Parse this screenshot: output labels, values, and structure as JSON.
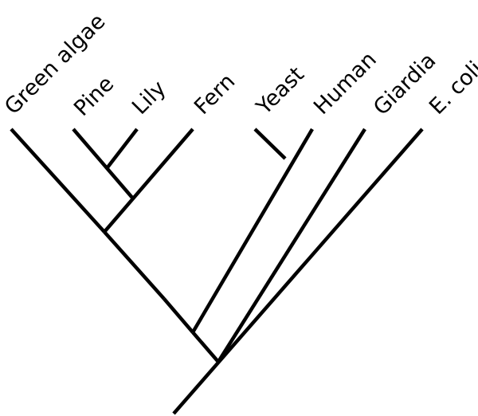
{
  "diagram": {
    "type": "phylogenetic-tree",
    "line_color": "#000000",
    "background_color": "#ffffff",
    "taxa": [
      {
        "id": "green-algae",
        "label": "Green algae"
      },
      {
        "id": "pine",
        "label": "Pine"
      },
      {
        "id": "lily",
        "label": "Lily"
      },
      {
        "id": "fern",
        "label": "Fern"
      },
      {
        "id": "yeast",
        "label": "Yeast"
      },
      {
        "id": "human",
        "label": "Human"
      },
      {
        "id": "giardia",
        "label": "Giardia"
      },
      {
        "id": "e-coli",
        "label": "E. coli"
      }
    ],
    "topology": "(((Green algae,((Pine,Lily),Fern)),(Yeast,Human)),Giardia),E. coli"
  }
}
